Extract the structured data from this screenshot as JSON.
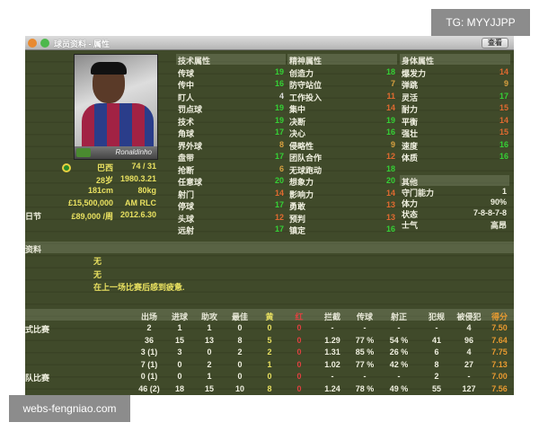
{
  "window": {
    "title": "球员资料 - 属性",
    "view_button": "查看"
  },
  "player": {
    "photo_name": "Ronaldinho",
    "nation": "巴西",
    "caps": "74 / 31",
    "age": "28岁",
    "birth": "1980.3.21",
    "height": "181cm",
    "weight": "80kg",
    "value": "£15,500,000",
    "position": "AM RLC",
    "wage_label": "日节",
    "wage": "£89,000 /周",
    "contract": "2012.6.30"
  },
  "technical": {
    "title": "技术属性",
    "items": [
      [
        "传球",
        19
      ],
      [
        "传中",
        16
      ],
      [
        "盯人",
        4
      ],
      [
        "罚点球",
        19
      ],
      [
        "技术",
        19
      ],
      [
        "角球",
        17
      ],
      [
        "界外球",
        8
      ],
      [
        "盘带",
        17
      ],
      [
        "抢断",
        6
      ],
      [
        "任意球",
        20
      ],
      [
        "射门",
        14
      ],
      [
        "停球",
        17
      ],
      [
        "头球",
        12
      ],
      [
        "远射",
        17
      ]
    ]
  },
  "mental": {
    "title": "精神属性",
    "items": [
      [
        "创造力",
        18
      ],
      [
        "防守站位",
        7
      ],
      [
        "工作投入",
        11
      ],
      [
        "集中",
        14
      ],
      [
        "决断",
        19
      ],
      [
        "决心",
        16
      ],
      [
        "侵略性",
        9
      ],
      [
        "团队合作",
        12
      ],
      [
        "无球跑动",
        18
      ],
      [
        "想象力",
        20
      ],
      [
        "影响力",
        14
      ],
      [
        "勇敢",
        13
      ],
      [
        "预判",
        13
      ],
      [
        "镇定",
        16
      ]
    ]
  },
  "physical": {
    "title": "身体属性",
    "items": [
      [
        "爆发力",
        14
      ],
      [
        "弹跳",
        9
      ],
      [
        "灵活",
        17
      ],
      [
        "耐力",
        15
      ],
      [
        "平衡",
        14
      ],
      [
        "强壮",
        15
      ],
      [
        "速度",
        16
      ],
      [
        "体质",
        16
      ]
    ]
  },
  "other": {
    "title": "其他",
    "items": [
      [
        "守门能力",
        "1"
      ],
      [
        "体力",
        "90%"
      ],
      [
        "状态",
        "7-8-8-7-8"
      ],
      [
        "士气",
        "高昂"
      ]
    ]
  },
  "info": {
    "title": "资料",
    "lines": [
      "无",
      "无",
      "在上一场比赛后感到疲惫."
    ]
  },
  "stats": {
    "headers": [
      "出场",
      "进球",
      "助攻",
      "最佳",
      "黄",
      "红",
      "拦截",
      "传球",
      "射正",
      "犯规",
      "被侵犯",
      "得分"
    ],
    "rows": [
      {
        "label": "式比赛",
        "cells": [
          "2",
          "1",
          "1",
          "0",
          "0",
          "0",
          "-",
          "-",
          "-",
          "-",
          "4",
          "7.50"
        ]
      },
      {
        "label": "",
        "cells": [
          "36",
          "15",
          "13",
          "8",
          "5",
          "0",
          "1.29",
          "77 %",
          "54 %",
          "41",
          "96",
          "7.64"
        ]
      },
      {
        "label": "",
        "cells": [
          "3 (1)",
          "3",
          "0",
          "2",
          "2",
          "0",
          "1.31",
          "85 %",
          "26 %",
          "6",
          "4",
          "7.75"
        ]
      },
      {
        "label": "",
        "cells": [
          "7 (1)",
          "0",
          "2",
          "0",
          "1",
          "0",
          "1.02",
          "77 %",
          "42 %",
          "8",
          "27",
          "7.13"
        ]
      },
      {
        "label": "队比赛",
        "cells": [
          "0 (1)",
          "0",
          "1",
          "0",
          "0",
          "0",
          "-",
          "-",
          "-",
          "2",
          "-",
          "7.00"
        ]
      },
      {
        "label": "",
        "cells": [
          "46 (2)",
          "18",
          "15",
          "10",
          "8",
          "0",
          "1.24",
          "78 %",
          "49 %",
          "55",
          "127",
          "7.56"
        ]
      }
    ]
  },
  "colors": {
    "high": "#35d035",
    "mid": "#e06a30",
    "low": "#d8a040",
    "vlow": "#dddddd",
    "yellow": "#e8e060",
    "red": "#e04040",
    "score": "#e89a30"
  },
  "watermarks": {
    "top": "TG: MYYJJPP",
    "bottom": "webs-fengniao.com"
  }
}
